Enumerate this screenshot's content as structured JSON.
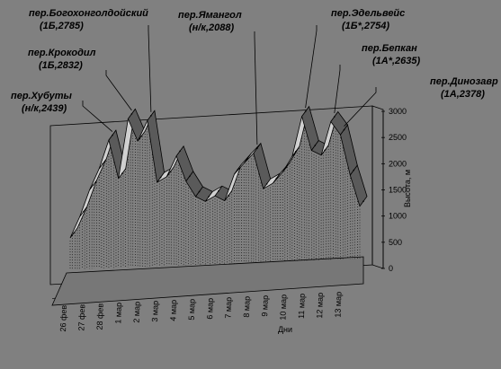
{
  "chart_data": {
    "type": "area",
    "style": "3d-ribbon",
    "colors": {
      "background": "#808080",
      "ribbon_top": "#d0d0d0",
      "ribbon_side": "#5a5a5a",
      "floor": "#707070",
      "text": "#000000"
    },
    "x": [
      "26 фев",
      "",
      "27 фев",
      "",
      "28 фев",
      "",
      "1 мар",
      "",
      "2 мар",
      "",
      "3 мар",
      "",
      "4 мар",
      "",
      "5 мар",
      "",
      "6 мар",
      "",
      "7 мар",
      "",
      "8 мар",
      "",
      "9 мар",
      "",
      "10 мар",
      "",
      "11 мар",
      "",
      "12 мар",
      "",
      "13 мар"
    ],
    "x_tick_labels": [
      "26 фев",
      "27 фев",
      "28 фев",
      "1 мар",
      "2 мар",
      "3 мар",
      "4 мар",
      "5 мар",
      "6 мар",
      "7 мар",
      "8 мар",
      "9 мар",
      "10 мар",
      "11 мар",
      "12 мар",
      "13 мар"
    ],
    "y": [
      600,
      1000,
      1500,
      1900,
      2439,
      1700,
      2832,
      2400,
      2785,
      1600,
      1700,
      2088,
      1600,
      1300,
      1200,
      1300,
      1200,
      1700,
      1900,
      2088,
      1400,
      1500,
      1700,
      2000,
      2754,
      2100,
      2000,
      2635,
      2378,
      1600,
      1000
    ],
    "ylabel": "Высота, м",
    "xlabel": "Дни",
    "yticks": [
      0,
      500,
      1000,
      1500,
      2000,
      2500,
      3000
    ],
    "ylim": [
      0,
      3000
    ],
    "annotations": [
      {
        "name": "пер.Хубуты",
        "detail": "(н/к,2439)",
        "x_index": 4
      },
      {
        "name": "пер.Крокодил",
        "detail": "(1Б,2832)",
        "x_index": 6
      },
      {
        "name": "пер.Богохонголдойский",
        "detail": "(1Б,2785)",
        "x_index": 8
      },
      {
        "name": "пер.Ямангол",
        "detail": "(н/к,2088)",
        "x_index": 19
      },
      {
        "name": "пер.Эдельвейс",
        "detail": "(1Б*,2754)",
        "x_index": 24
      },
      {
        "name": "пер.Бепкан",
        "detail": "(1А*,2635)",
        "x_index": 27
      },
      {
        "name": "пер.Динозавр",
        "detail": "(1А,2378)",
        "x_index": 28
      }
    ]
  }
}
